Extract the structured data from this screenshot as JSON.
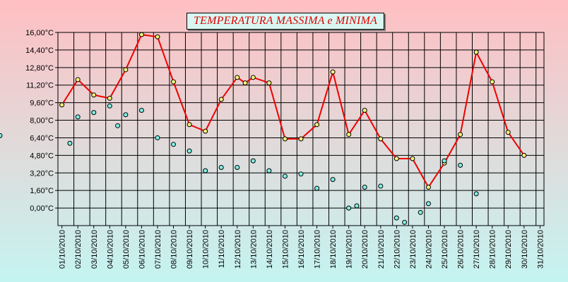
{
  "chart_data": {
    "type": "line",
    "title": "TEMPERATURA MASSIMA e MINIMA",
    "xlabel": "",
    "ylabel": "",
    "ylim": [
      -1.6,
      16.0
    ],
    "grid": true,
    "y_ticks": [
      "16,00°C",
      "14,40°C",
      "12,80°C",
      "11,20°C",
      "9,60°C",
      "8,00°C",
      "6,40°C",
      "4,80°C",
      "3,20°C",
      "1,60°C",
      "0,00°C"
    ],
    "y_tick_values": [
      16.0,
      14.4,
      12.8,
      11.2,
      9.6,
      8.0,
      6.4,
      4.8,
      3.2,
      1.6,
      0.0
    ],
    "x_tick_labels": [
      "01/10/2010",
      "02/10/2010",
      "03/10/2010",
      "04/10/2010",
      "05/10/2010",
      "06/10/2010",
      "07/10/2010",
      "08/10/2010",
      "09/10/2010",
      "10/10/2010",
      "11/10/2010",
      "12/10/2010",
      "13/10/2010",
      "14/10/2010",
      "15/10/2010",
      "16/10/2010",
      "17/10/2010",
      "18/10/2010",
      "19/10/2010",
      "20/10/2010",
      "21/10/2010",
      "22/10/2010",
      "23/10/2010",
      "24/10/2010",
      "25/10/2010",
      "26/10/2010",
      "27/10/2010",
      "28/10/2010",
      "29/10/2010",
      "30/10/2010",
      "31/10/2010"
    ],
    "x": [
      "01/10/2010 12:00",
      "02/10/2010 00:00",
      "02/10/2010 12:00",
      "03/10/2010 00:00",
      "03/10/2010 12:00",
      "04/10/2010 00:00",
      "04/10/2010 12:00",
      "05/10/2010 00:00",
      "05/10/2010 12:00",
      "06/10/2010 00:00",
      "06/10/2010 12:00",
      "07/10/2010 00:00",
      "07/10/2010 12:00",
      "08/10/2010 00:00",
      "08/10/2010 12:00",
      "09/10/2010 00:00",
      "09/10/2010 12:00",
      "10/10/2010 00:00",
      "10/10/2010 12:00",
      "11/10/2010 00:00",
      "11/10/2010 12:00",
      "12/10/2010 00:00",
      "12/10/2010 12:00",
      "13/10/2010 00:00",
      "13/10/2010 12:00",
      "14/10/2010 00:00",
      "14/10/2010 12:00",
      "15/10/2010 00:00",
      "15/10/2010 12:00",
      "16/10/2010 00:00",
      "16/10/2010 12:00",
      "17/10/2010 00:00",
      "17/10/2010 12:00",
      "18/10/2010 00:00",
      "18/10/2010 12:00",
      "19/10/2010 00:00",
      "19/10/2010 12:00",
      "20/10/2010 00:00",
      "20/10/2010 12:00",
      "21/10/2010 00:00",
      "21/10/2010 12:00",
      "22/10/2010 00:00",
      "22/10/2010 12:00",
      "23/10/2010 00:00",
      "23/10/2010 12:00",
      "24/10/2010 00:00",
      "24/10/2010 12:00",
      "25/10/2010 00:00",
      "25/10/2010 12:00",
      "26/10/2010 00:00",
      "26/10/2010 12:00",
      "27/10/2010 00:00",
      "27/10/2010 12:00",
      "28/10/2010 00:00",
      "28/10/2010 12:00",
      "29/10/2010 00:00",
      "29/10/2010 12:00",
      "30/10/2010 00:00",
      "30/10/2010 12:00",
      "31/10/2010 00:00",
      "31/10/2010 12:00"
    ],
    "series": [
      {
        "color": "#ee0000",
        "points": [
          [
            "01/10/2010 12:00",
            9.4
          ],
          [
            "02/10/2010 12:00",
            11.7
          ],
          [
            "03/10/2010 12:00",
            10.3
          ],
          [
            "04/10/2010 12:00",
            10.0
          ],
          [
            "05/10/2010 12:00",
            12.6
          ],
          [
            "06/10/2010 12:00",
            15.8
          ],
          [
            "07/10/2010 12:00",
            15.6
          ],
          [
            "08/10/2010 12:00",
            11.5
          ],
          [
            "09/10/2010 12:00",
            7.6
          ],
          [
            "10/10/2010 12:00",
            7.0
          ],
          [
            "11/10/2010 12:00",
            9.9
          ],
          [
            "12/10/2010 12:00",
            11.9
          ],
          [
            "13/10/2010 00:00",
            11.4
          ],
          [
            "13/10/2010 12:00",
            11.9
          ],
          [
            "14/10/2010 12:00",
            11.4
          ],
          [
            "15/10/2010 12:00",
            6.3
          ],
          [
            "16/10/2010 12:00",
            6.3
          ],
          [
            "17/10/2010 12:00",
            7.6
          ],
          [
            "18/10/2010 12:00",
            12.4
          ],
          [
            "19/10/2010 12:00",
            6.7
          ],
          [
            "20/10/2010 12:00",
            8.9
          ],
          [
            "21/10/2010 12:00",
            6.3
          ],
          [
            "22/10/2010 12:00",
            4.5
          ],
          [
            "23/10/2010 12:00",
            4.5
          ],
          [
            "24/10/2010 12:00",
            1.9
          ],
          [
            "25/10/2010 12:00",
            4.1
          ],
          [
            "26/10/2010 12:00",
            6.7
          ],
          [
            "27/10/2010 12:00",
            14.2
          ],
          [
            "28/10/2010 12:00",
            11.5
          ],
          [
            "29/10/2010 12:00",
            6.9
          ],
          [
            "30/10/2010 12:00",
            4.8
          ]
        ]
      },
      {
        "color": "#0000ee",
        "points": [
          [
            "01/10/2010 00:00",
            6.6
          ],
          [
            "02/10/2010 00:00",
            5.9
          ],
          [
            "02/10/2010 12:00",
            8.3
          ],
          [
            "03/10/2010 12:00",
            8.7
          ],
          [
            "04/10/2010 12:00",
            9.3
          ],
          [
            "05/10/2010 00:00",
            7.5
          ],
          [
            "05/10/2010 12:00",
            8.5
          ],
          [
            "06/10/2010 12:00",
            8.9
          ],
          [
            "07/10/2010 12:00",
            6.4
          ],
          [
            "08/10/2010 12:00",
            5.8
          ],
          [
            "09/10/2010 12:00",
            5.2
          ],
          [
            "10/10/2010 12:00",
            3.4
          ],
          [
            "11/10/2010 12:00",
            3.7
          ],
          [
            "12/10/2010 12:00",
            3.7
          ],
          [
            "13/10/2010 12:00",
            4.3
          ],
          [
            "14/10/2010 12:00",
            3.4
          ],
          [
            "15/10/2010 12:00",
            2.9
          ],
          [
            "16/10/2010 12:00",
            3.1
          ],
          [
            "17/10/2010 12:00",
            1.8
          ],
          [
            "18/10/2010 12:00",
            2.6
          ],
          [
            "19/10/2010 12:00",
            0.0
          ],
          [
            "20/10/2010 00:00",
            0.2
          ],
          [
            "20/10/2010 12:00",
            1.9
          ],
          [
            "21/10/2010 12:00",
            2.0
          ],
          [
            "22/10/2010 12:00",
            -0.9
          ],
          [
            "23/10/2010 00:00",
            -1.3
          ],
          [
            "24/10/2010 00:00",
            -0.4
          ],
          [
            "24/10/2010 12:00",
            0.4
          ],
          [
            "25/10/2010 12:00",
            4.3
          ],
          [
            "26/10/2010 12:00",
            3.9
          ],
          [
            "27/10/2010 12:00",
            1.3
          ]
        ]
      }
    ]
  }
}
